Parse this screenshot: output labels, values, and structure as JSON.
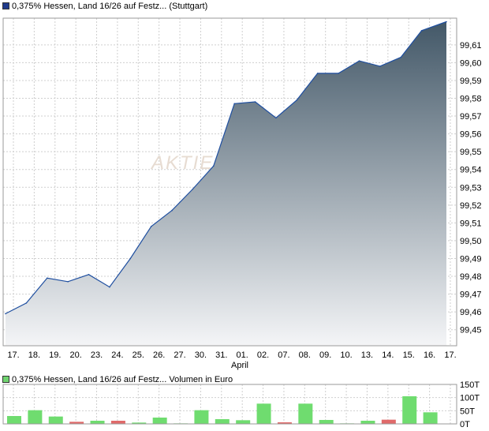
{
  "price_legend": {
    "label": "0,375% Hessen, Land 16/26 auf Festz... (Stuttgart)",
    "color": "#1f3a8a"
  },
  "volume_legend": {
    "label": "0,375% Hessen, Land 16/26 auf Festz... Volumen in Euro",
    "color": "#6fd36f"
  },
  "watermark": "AKTIEN",
  "month_label": "April",
  "colors": {
    "area_top": "#435868",
    "area_bottom": "#f4f5f7",
    "line": "#1f4fa0",
    "vol_up": "#6fdc6f",
    "vol_down": "#e06a6a",
    "grid": "#cfcfcf"
  },
  "chart_data": [
    {
      "type": "area",
      "x_labels": [
        "17.",
        "18.",
        "19.",
        "20.",
        "23.",
        "24.",
        "25.",
        "26.",
        "27.",
        "30.",
        "31.",
        "01.",
        "02.",
        "07.",
        "08.",
        "09.",
        "10.",
        "13.",
        "14.",
        "15.",
        "16.",
        "17."
      ],
      "series": [
        {
          "name": "0,375% Hessen, Land 16/26 auf Festz... (Stuttgart)",
          "values": [
            99.459,
            99.465,
            99.479,
            99.477,
            99.481,
            99.474,
            99.49,
            99.508,
            99.517,
            99.529,
            99.542,
            99.577,
            99.578,
            99.569,
            99.579,
            99.594,
            99.594,
            99.601,
            99.598,
            99.603,
            99.618,
            99.623
          ]
        }
      ],
      "y_ticks": [
        "99,45",
        "99,46",
        "99,47",
        "99,48",
        "99,49",
        "99,50",
        "99,51",
        "99,52",
        "99,53",
        "99,54",
        "99,55",
        "99,56",
        "99,57",
        "99,58",
        "99,59",
        "99,60",
        "99,61"
      ],
      "ylim": [
        99.441,
        99.625
      ],
      "grid": true
    },
    {
      "type": "bar",
      "series": [
        {
          "name": "Volumen in Euro",
          "values": [
            30,
            52,
            28,
            8,
            12,
            12,
            5,
            24,
            2,
            52,
            18,
            14,
            77,
            6,
            77,
            15,
            2,
            12,
            16,
            105,
            44,
            0
          ],
          "directions": [
            "up",
            "up",
            "up",
            "down",
            "up",
            "down",
            "up",
            "up",
            "up",
            "up",
            "up",
            "up",
            "up",
            "down",
            "up",
            "up",
            "up",
            "up",
            "down",
            "up",
            "up",
            "up"
          ]
        }
      ],
      "y_ticks": [
        "0T",
        "50T",
        "100T",
        "150T"
      ],
      "ylim": [
        0,
        150
      ],
      "grid": true
    }
  ]
}
